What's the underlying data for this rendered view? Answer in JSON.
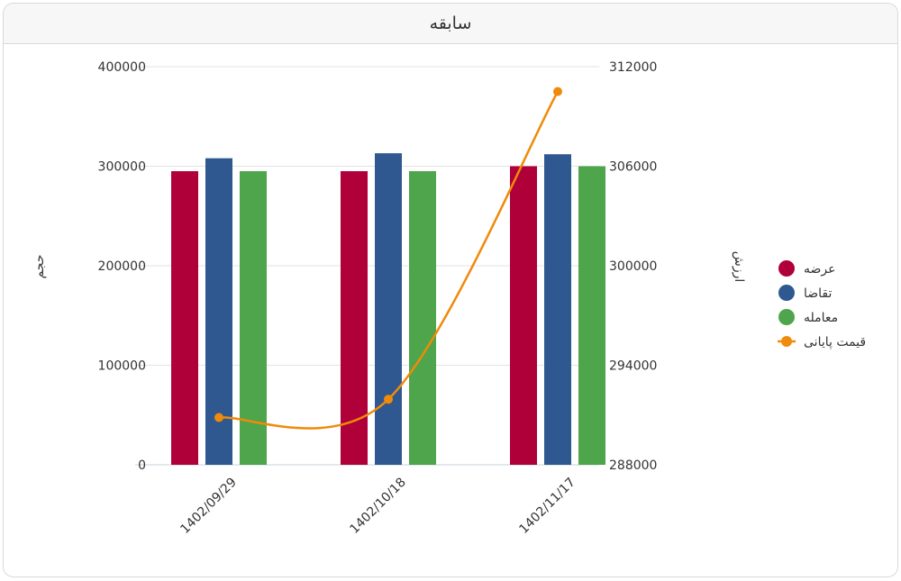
{
  "panel": {
    "title": "سابقه"
  },
  "colors": {
    "offer": "#b0003a",
    "demand": "#2f5891",
    "trade": "#4ea54b",
    "price": "#f08a0a"
  },
  "chart_data": {
    "type": "bar",
    "categories": [
      "1402/09/29",
      "1402/10/18",
      "1402/11/17"
    ],
    "series": [
      {
        "key": "offer",
        "name": "عرضه",
        "type": "bar",
        "axis": "left",
        "values": [
          295000,
          295000,
          300000
        ]
      },
      {
        "key": "demand",
        "name": "تقاضا",
        "type": "bar",
        "axis": "left",
        "values": [
          308000,
          313000,
          312000
        ]
      },
      {
        "key": "trade",
        "name": "معامله",
        "type": "bar",
        "axis": "left",
        "values": [
          295000,
          295000,
          300000
        ]
      },
      {
        "key": "price",
        "name": "قیمت پایانی",
        "type": "line",
        "axis": "right",
        "values": [
          290850,
          291950,
          310500
        ]
      }
    ],
    "y_left": {
      "label": "حجم",
      "min": 0,
      "max": 400000,
      "ticks": [
        "0",
        "100000",
        "200000",
        "300000",
        "400000"
      ]
    },
    "y_right": {
      "label": "ارزش",
      "min": 288000,
      "max": 312000,
      "ticks": [
        "288000",
        "294000",
        "300000",
        "306000",
        "312000"
      ]
    },
    "grid": true,
    "legend": "right"
  }
}
